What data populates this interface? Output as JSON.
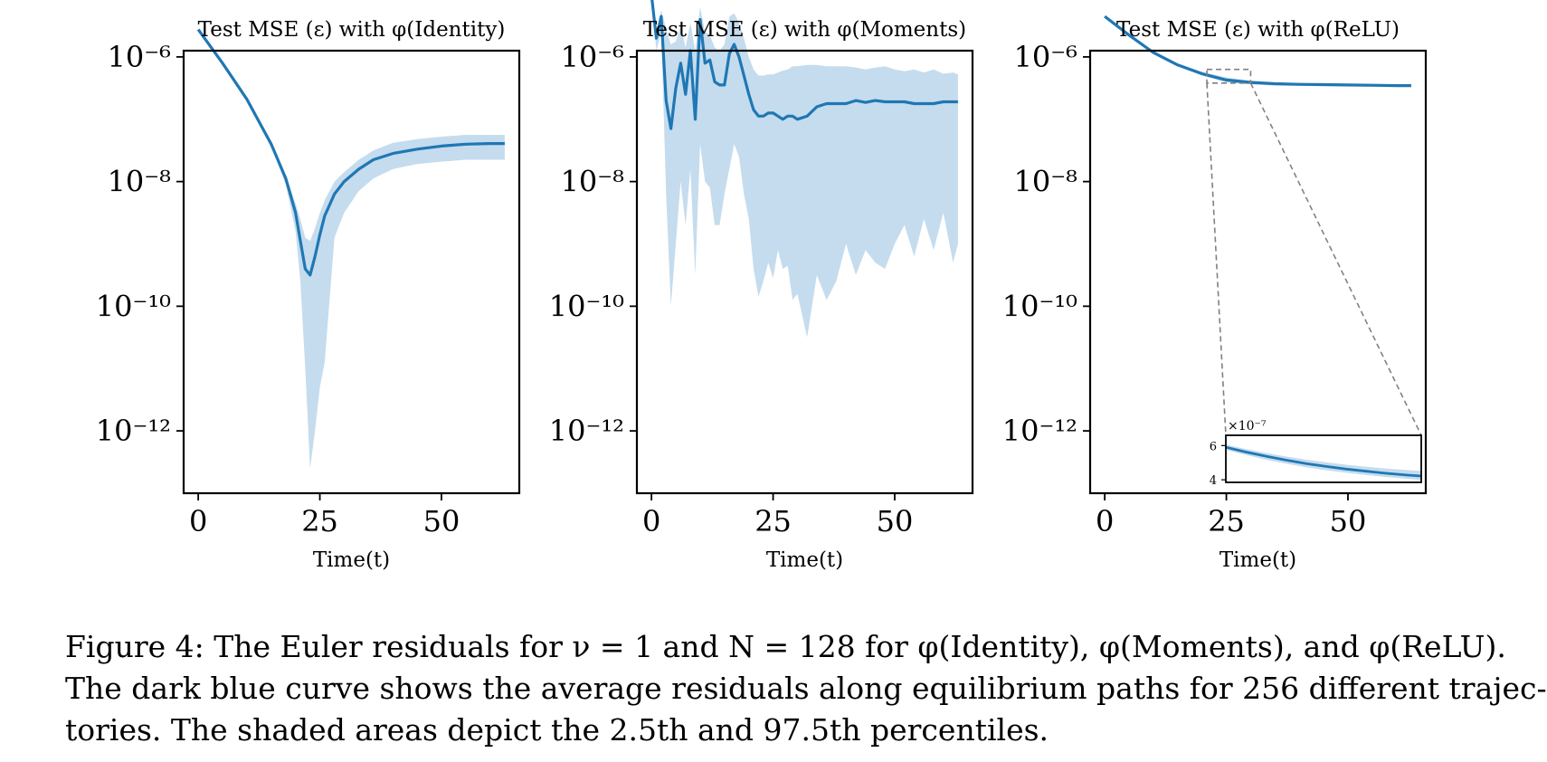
{
  "figure": {
    "caption_lines": [
      "Figure 4: The Euler residuals for ν = 1 and N = 128 for φ(Identity), φ(Moments), and φ(ReLU).",
      "The dark blue curve shows the average residuals along equilibrium paths for 256 different trajec-",
      "tories. The shaded areas depict the 2.5th and 97.5th percentiles."
    ],
    "colors": {
      "line": "#1f77b4",
      "band": "#c5dcee",
      "axis": "#000000",
      "inset_connector": "#808080"
    }
  },
  "chart_data": [
    {
      "type": "line",
      "title": "Test MSE (ε) with φ(Identity)",
      "xlabel": "Time(t)",
      "ylabel": "",
      "yscale": "log",
      "xlim": [
        -3,
        66
      ],
      "ylim_log10": [
        -13,
        -5.9
      ],
      "xticks": [
        0,
        25,
        50
      ],
      "xtick_labels": [
        "0",
        "25",
        "50"
      ],
      "yticks_log10": [
        -6,
        -8,
        -10,
        -12
      ],
      "ytick_labels": [
        "10⁻⁶",
        "10⁻⁸",
        "10⁻¹⁰",
        "10⁻¹²"
      ],
      "series": [
        {
          "x": [
            0,
            5,
            10,
            15,
            18,
            20,
            21,
            22,
            23,
            24,
            25,
            26,
            28,
            30,
            33,
            36,
            40,
            45,
            50,
            55,
            60,
            63
          ],
          "mean_log10": [
            -5.56,
            -6.1,
            -6.68,
            -7.4,
            -7.95,
            -8.5,
            -8.95,
            -9.4,
            -9.5,
            -9.2,
            -8.85,
            -8.55,
            -8.2,
            -8.0,
            -7.8,
            -7.65,
            -7.55,
            -7.48,
            -7.43,
            -7.4,
            -7.39,
            -7.39
          ],
          "upper_log10": [
            -5.56,
            -6.1,
            -6.68,
            -7.38,
            -7.9,
            -8.35,
            -8.6,
            -8.9,
            -8.95,
            -8.75,
            -8.5,
            -8.3,
            -8.0,
            -7.85,
            -7.65,
            -7.5,
            -7.38,
            -7.32,
            -7.28,
            -7.25,
            -7.25,
            -7.25
          ],
          "lower_log10": [
            -5.56,
            -6.1,
            -6.68,
            -7.42,
            -8.05,
            -8.8,
            -9.6,
            -11.0,
            -12.6,
            -12.0,
            -11.3,
            -10.9,
            -8.9,
            -8.5,
            -8.15,
            -7.95,
            -7.8,
            -7.72,
            -7.68,
            -7.65,
            -7.65,
            -7.65
          ]
        }
      ]
    },
    {
      "type": "line",
      "title": "Test MSE (ε) with φ(Moments)",
      "xlabel": "Time(t)",
      "ylabel": "",
      "yscale": "log",
      "xlim": [
        -3,
        66
      ],
      "ylim_log10": [
        -13,
        -5.9
      ],
      "xticks": [
        0,
        25,
        50
      ],
      "xtick_labels": [
        "0",
        "25",
        "50"
      ],
      "yticks_log10": [
        -6,
        -8,
        -10,
        -12
      ],
      "ytick_labels": [
        "10⁻⁶",
        "10⁻⁸",
        "10⁻¹⁰",
        "10⁻¹²"
      ],
      "series": [
        {
          "x": [
            0,
            1,
            2,
            3,
            4,
            5,
            6,
            7,
            8,
            9,
            10,
            11,
            12,
            13,
            14,
            15,
            16,
            17,
            18,
            19,
            20,
            21,
            22,
            23,
            24,
            25,
            26,
            27,
            28,
            29,
            30,
            32,
            34,
            36,
            38,
            40,
            42,
            44,
            46,
            48,
            50,
            52,
            54,
            56,
            58,
            60,
            62,
            63
          ],
          "mean_log10": [
            -5.0,
            -5.7,
            -5.35,
            -6.7,
            -7.15,
            -6.5,
            -6.1,
            -6.6,
            -5.9,
            -7.0,
            -5.4,
            -6.1,
            -6.05,
            -6.4,
            -6.45,
            -6.45,
            -5.95,
            -5.8,
            -6.0,
            -6.3,
            -6.6,
            -6.85,
            -6.95,
            -6.95,
            -6.9,
            -6.9,
            -6.95,
            -7.0,
            -6.95,
            -6.95,
            -7.0,
            -6.95,
            -6.8,
            -6.75,
            -6.75,
            -6.75,
            -6.7,
            -6.73,
            -6.7,
            -6.72,
            -6.72,
            -6.72,
            -6.75,
            -6.75,
            -6.75,
            -6.72,
            -6.72,
            -6.72
          ],
          "upper_log10": [
            -5.0,
            -5.6,
            -5.25,
            -5.55,
            -5.8,
            -5.75,
            -5.5,
            -5.85,
            -5.45,
            -5.9,
            -5.2,
            -5.6,
            -5.65,
            -5.85,
            -5.9,
            -5.8,
            -5.35,
            -5.3,
            -5.45,
            -5.7,
            -6.0,
            -6.2,
            -6.3,
            -6.3,
            -6.28,
            -6.28,
            -6.25,
            -6.22,
            -6.2,
            -6.15,
            -6.15,
            -6.13,
            -6.13,
            -6.15,
            -6.15,
            -6.15,
            -6.17,
            -6.2,
            -6.17,
            -6.15,
            -6.2,
            -6.23,
            -6.2,
            -6.25,
            -6.2,
            -6.27,
            -6.25,
            -6.28
          ],
          "lower_log10": [
            -5.0,
            -5.9,
            -5.6,
            -8.2,
            -10.0,
            -9.0,
            -8.0,
            -8.7,
            -7.8,
            -9.5,
            -7.4,
            -8.0,
            -8.1,
            -8.7,
            -8.7,
            -8.2,
            -7.8,
            -7.4,
            -7.6,
            -8.2,
            -8.6,
            -9.4,
            -9.85,
            -9.6,
            -9.3,
            -9.55,
            -9.1,
            -9.4,
            -9.35,
            -9.9,
            -9.8,
            -10.5,
            -9.5,
            -9.9,
            -9.6,
            -9.0,
            -9.5,
            -9.1,
            -9.3,
            -9.4,
            -9.0,
            -8.7,
            -9.2,
            -8.6,
            -9.1,
            -8.5,
            -9.3,
            -9.0
          ]
        }
      ]
    },
    {
      "type": "line",
      "title": "Test MSE (ε) with φ(ReLU)",
      "xlabel": "Time(t)",
      "ylabel": "",
      "yscale": "log",
      "xlim": [
        -3,
        66
      ],
      "ylim_log10": [
        -13,
        -5.9
      ],
      "xticks": [
        0,
        25,
        50
      ],
      "xtick_labels": [
        "0",
        "25",
        "50"
      ],
      "yticks_log10": [
        -6,
        -8,
        -10,
        -12
      ],
      "ytick_labels": [
        "10⁻⁶",
        "10⁻⁸",
        "10⁻¹⁰",
        "10⁻¹²"
      ],
      "series": [
        {
          "x": [
            0,
            5,
            10,
            15,
            20,
            25,
            30,
            35,
            40,
            45,
            50,
            55,
            60,
            63
          ],
          "mean_log10": [
            -5.35,
            -5.65,
            -5.93,
            -6.13,
            -6.27,
            -6.37,
            -6.41,
            -6.43,
            -6.44,
            -6.445,
            -6.45,
            -6.455,
            -6.46,
            -6.46
          ],
          "upper_log10": [
            -5.35,
            -5.64,
            -5.92,
            -6.11,
            -6.24,
            -6.33,
            -6.38,
            -6.41,
            -6.42,
            -6.43,
            -6.435,
            -6.44,
            -6.445,
            -6.445
          ],
          "lower_log10": [
            -5.35,
            -5.66,
            -5.94,
            -6.15,
            -6.3,
            -6.41,
            -6.44,
            -6.46,
            -6.465,
            -6.47,
            -6.475,
            -6.48,
            -6.48,
            -6.48
          ]
        }
      ],
      "inset": {
        "multiplier_label": "×10⁻⁷",
        "xlim": [
          24,
          63
        ],
        "ylim": [
          3.85,
          6.6
        ],
        "yticks": [
          4,
          6
        ],
        "ytick_labels": [
          "4",
          "6"
        ],
        "series": [
          {
            "x": [
              24,
              28,
              32,
              36,
              40,
              44,
              48,
              52,
              56,
              60,
              63
            ],
            "mean": [
              5.9,
              5.62,
              5.38,
              5.15,
              4.95,
              4.78,
              4.63,
              4.5,
              4.38,
              4.28,
              4.22
            ],
            "upper": [
              6.05,
              5.8,
              5.57,
              5.36,
              5.18,
              5.02,
              4.88,
              4.76,
              4.66,
              4.57,
              4.52
            ],
            "lower": [
              5.75,
              5.45,
              5.18,
              4.94,
              4.74,
              4.56,
              4.41,
              4.28,
              4.16,
              4.06,
              4.0
            ]
          }
        ]
      }
    }
  ]
}
